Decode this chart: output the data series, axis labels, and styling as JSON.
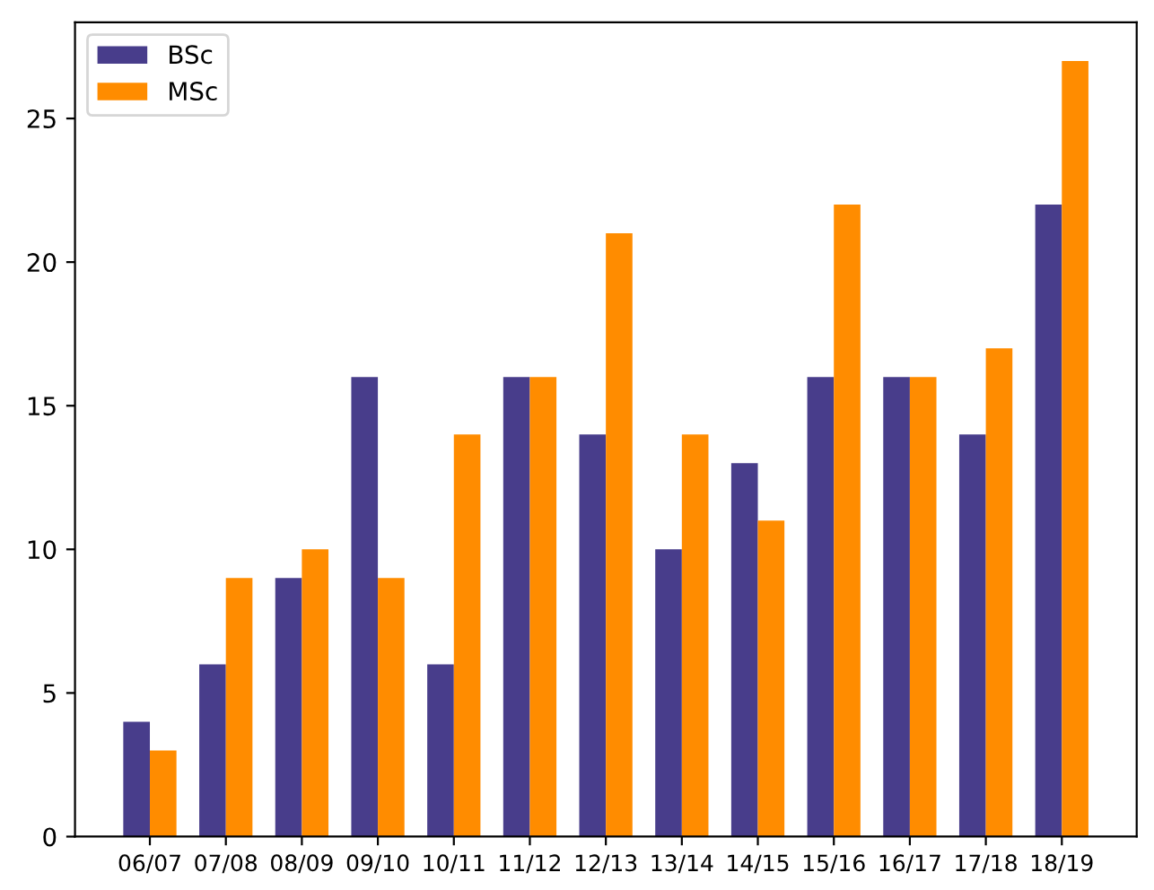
{
  "chart_data": {
    "type": "bar",
    "categories": [
      "06/07",
      "07/08",
      "08/09",
      "09/10",
      "10/11",
      "11/12",
      "12/13",
      "13/14",
      "14/15",
      "15/16",
      "16/17",
      "17/18",
      "18/19"
    ],
    "series": [
      {
        "name": "BSc",
        "color": "#483d8b",
        "values": [
          4,
          6,
          9,
          16,
          6,
          16,
          14,
          10,
          13,
          16,
          16,
          14,
          22
        ]
      },
      {
        "name": "MSc",
        "color": "#ff8c00",
        "values": [
          3,
          9,
          10,
          9,
          14,
          16,
          21,
          14,
          11,
          22,
          16,
          17,
          27
        ]
      }
    ],
    "ylim": [
      0,
      28.35
    ],
    "yticks": [
      0,
      5,
      10,
      15,
      20,
      25
    ],
    "grid": false,
    "legend": "top left"
  }
}
